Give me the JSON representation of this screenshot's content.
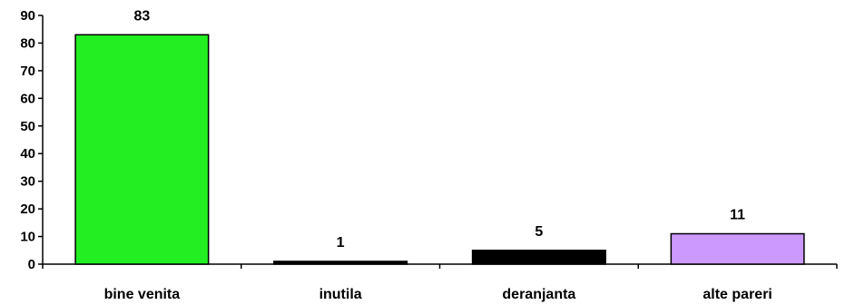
{
  "chart_data": {
    "type": "bar",
    "categories": [
      "bine venita",
      "inutila",
      "deranjanta",
      "alte pareri"
    ],
    "values": [
      83,
      1,
      5,
      11
    ],
    "data_labels": [
      "83",
      "1",
      "5",
      "11"
    ],
    "colors": [
      "#22ee22",
      "#000000",
      "#000000",
      "#cc99ff"
    ],
    "ylim": [
      0,
      90
    ],
    "yticks": [
      0,
      10,
      20,
      30,
      40,
      50,
      60,
      70,
      80,
      90
    ],
    "ytick_labels": [
      "0",
      "10",
      "20",
      "30",
      "40",
      "50",
      "60",
      "70",
      "80",
      "90"
    ],
    "title": "",
    "xlabel": "",
    "ylabel": "",
    "grid": false,
    "legend": "none"
  }
}
